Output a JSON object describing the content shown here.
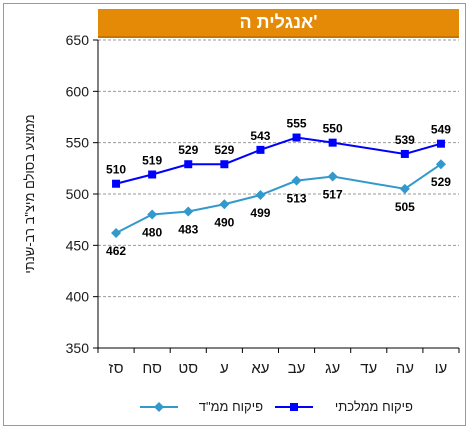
{
  "chart_data": {
    "type": "line",
    "title": "אנגלית ה'",
    "ylabel": "ממוצע בסולם מיצ\"ב רב-שנתי",
    "xlabel": "",
    "categories": [
      "סז",
      "סח",
      "סט",
      "ע",
      "עא",
      "עב",
      "עג",
      "עד",
      "עה",
      "עו"
    ],
    "ylim": [
      350,
      650
    ],
    "yticks": [
      350,
      400,
      450,
      500,
      550,
      600,
      650
    ],
    "grid": true,
    "legend_position": "bottom",
    "series": [
      {
        "name": "פיקוח ממלכתי",
        "color": "#0000ff",
        "marker": "square",
        "values": [
          510,
          519,
          529,
          529,
          543,
          555,
          550,
          null,
          539,
          549
        ]
      },
      {
        "name": "פיקוח ממ\"ד",
        "color": "#3399cc",
        "marker": "diamond",
        "values": [
          462,
          480,
          483,
          490,
          499,
          513,
          517,
          null,
          505,
          529
        ]
      }
    ]
  }
}
